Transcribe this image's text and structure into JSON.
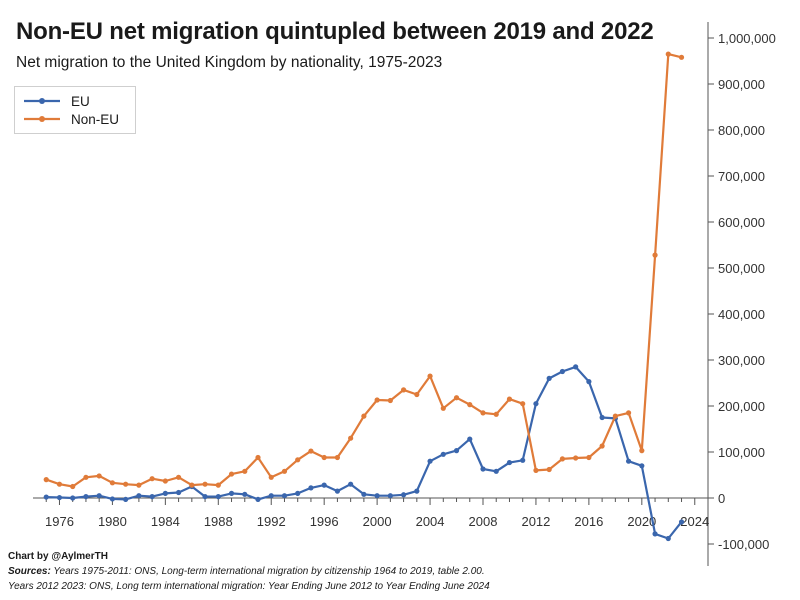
{
  "header": {
    "title": "Non-EU net migration quintupled between 2019 and 2022",
    "subtitle": "Net migration to the United Kingdom by nationality, 1975-2023"
  },
  "legend": {
    "items": [
      {
        "label": "EU",
        "color": "#3a66ad"
      },
      {
        "label": "Non-EU",
        "color": "#e07b39"
      }
    ],
    "placement": "top-left"
  },
  "footer": {
    "credit": "Chart by @AylmerTH",
    "sources_label": "Sources:",
    "sources_line1": "Years 1975-2011: ONS, Long-term international migration by citizenship 1964 to 2019, table 2.00.",
    "sources_line2": "Years 2012 2023: ONS, Long term international migration: Year Ending June 2012 to Year Ending June 2024"
  },
  "chart_data": {
    "type": "line",
    "title": "Non-EU net migration quintupled between 2019 and 2022",
    "subtitle": "Net migration to the United Kingdom by nationality, 1975-2023",
    "xlabel": "",
    "ylabel": "",
    "xlim": [
      1974,
      2025
    ],
    "ylim": [
      -150000,
      1000000
    ],
    "y_axis_side": "right",
    "x_ticks": [
      "1976",
      "1980",
      "1984",
      "1988",
      "1992",
      "1996",
      "2000",
      "2004",
      "2008",
      "2012",
      "2016",
      "2020",
      "2024"
    ],
    "y_ticks": [
      "-100,000",
      "0",
      "100,000",
      "200,000",
      "300,000",
      "400,000",
      "500,000",
      "600,000",
      "700,000",
      "800,000",
      "900,000",
      "1,000,000"
    ],
    "y_tick_values": [
      -100000,
      0,
      100000,
      200000,
      300000,
      400000,
      500000,
      600000,
      700000,
      800000,
      900000,
      1000000
    ],
    "x_tick_values": [
      1976,
      1980,
      1984,
      1988,
      1992,
      1996,
      2000,
      2004,
      2008,
      2012,
      2016,
      2020,
      2024
    ],
    "x": [
      1975,
      1976,
      1977,
      1978,
      1979,
      1980,
      1981,
      1982,
      1983,
      1984,
      1985,
      1986,
      1987,
      1988,
      1989,
      1990,
      1991,
      1992,
      1993,
      1994,
      1995,
      1996,
      1997,
      1998,
      1999,
      2000,
      2001,
      2002,
      2003,
      2004,
      2005,
      2006,
      2007,
      2008,
      2009,
      2010,
      2011,
      2012,
      2013,
      2014,
      2015,
      2016,
      2017,
      2018,
      2019,
      2020,
      2021,
      2022,
      2023
    ],
    "series": [
      {
        "name": "EU",
        "color": "#3a66ad",
        "values": [
          2000,
          1000,
          0,
          3000,
          5000,
          -2000,
          -3000,
          5000,
          3000,
          10000,
          12000,
          25000,
          3000,
          3000,
          10000,
          8000,
          -3000,
          5000,
          5000,
          10000,
          22000,
          28000,
          15000,
          30000,
          8000,
          5000,
          5000,
          7000,
          15000,
          80000,
          95000,
          103000,
          128000,
          63000,
          58000,
          77000,
          82000,
          205000,
          260000,
          275000,
          285000,
          253000,
          175000,
          173000,
          80000,
          70000,
          -78000,
          -88000,
          -52000
        ]
      },
      {
        "name": "Non-EU",
        "color": "#e07b39",
        "values": [
          40000,
          30000,
          25000,
          45000,
          48000,
          33000,
          30000,
          28000,
          42000,
          37000,
          45000,
          28000,
          30000,
          28000,
          52000,
          58000,
          88000,
          45000,
          58000,
          83000,
          102000,
          88000,
          88000,
          130000,
          178000,
          213000,
          212000,
          235000,
          225000,
          265000,
          195000,
          218000,
          203000,
          185000,
          182000,
          215000,
          205000,
          60000,
          62000,
          85000,
          87000,
          88000,
          113000,
          178000,
          185000,
          103000,
          528000,
          965000,
          958000
        ]
      }
    ],
    "grid": false,
    "markers": true
  }
}
